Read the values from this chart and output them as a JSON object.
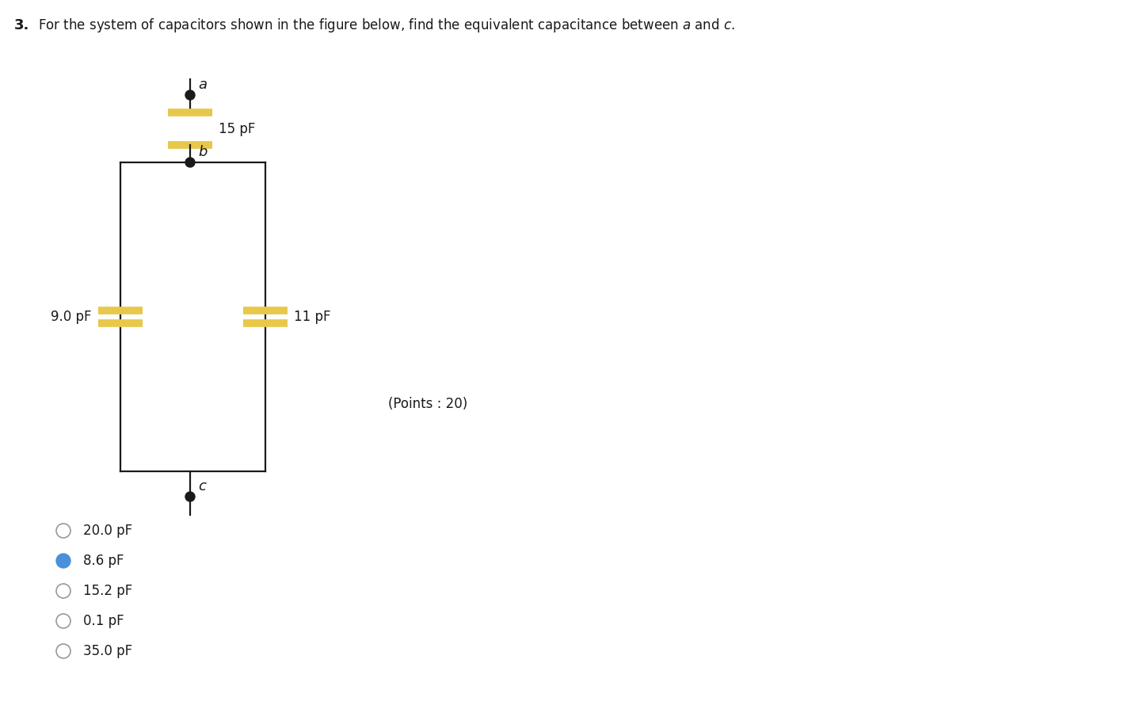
{
  "background_color": "#ffffff",
  "capacitor_plate_color": "#E8C84A",
  "wire_color": "#1a1a1a",
  "dot_color": "#1a1a1a",
  "points_text": "(Points : 20)",
  "choices": [
    "20.0 pF",
    "8.6 pF",
    "15.2 pF",
    "0.1 pF",
    "35.0 pF"
  ],
  "selected_choice": 1,
  "selected_color": "#4a90d9",
  "cap_top_label": "15 pF",
  "cap_left_label": "9.0 pF",
  "cap_right_label": "11 pF",
  "node_a_label": "a",
  "node_b_label": "b",
  "node_c_label": "c",
  "title_bold": "3.",
  "title_rest": "For the system of capacitors shown in the figure below, find the equivalent capacitance between $a$ and $c$."
}
